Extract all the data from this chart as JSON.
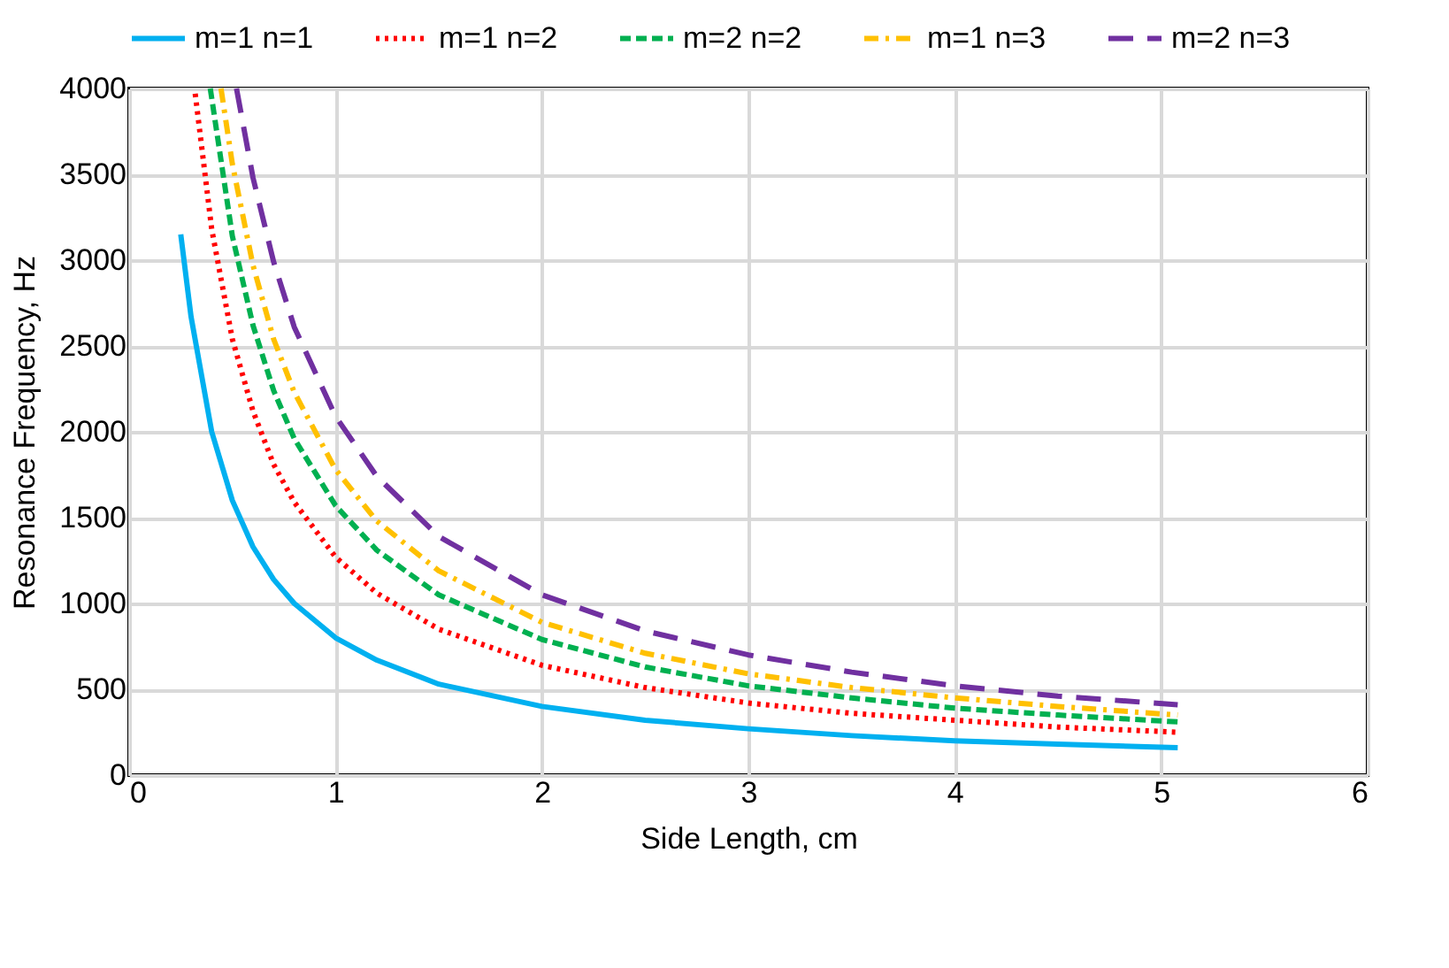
{
  "chart_data": {
    "type": "line",
    "xlabel": "Side Length, cm",
    "ylabel": "Resonance Frequency, Hz",
    "xlim": [
      0,
      6
    ],
    "xticks": [
      0,
      1,
      2,
      3,
      4,
      5,
      6
    ],
    "ylim": [
      0,
      4000
    ],
    "yticks": [
      0,
      500,
      1000,
      1500,
      2000,
      2500,
      3000,
      3500,
      4000
    ],
    "grid": true,
    "legend": "top",
    "marker": "none",
    "series": [
      {
        "name": "m=1 n=1",
        "color": "#00b0f0",
        "line_style": "solid",
        "x": [
          0.25,
          0.3,
          0.4,
          0.5,
          0.6,
          0.7,
          0.8,
          1,
          1.2,
          1.5,
          2,
          2.5,
          3,
          3.5,
          4,
          4.5,
          5.08
        ],
        "values": [
          3150,
          2670,
          2000,
          1600,
          1330,
          1140,
          1000,
          800,
          670,
          530,
          400,
          320,
          270,
          230,
          200,
          180,
          160
        ]
      },
      {
        "name": "m=1 n=2",
        "color": "#ff0000",
        "line_style": "dotted",
        "x": [
          0.32,
          0.4,
          0.5,
          0.6,
          0.7,
          0.8,
          1,
          1.2,
          1.5,
          2,
          2.5,
          3,
          3.5,
          4,
          4.5,
          5.08
        ],
        "values": [
          3970,
          3180,
          2540,
          2120,
          1810,
          1590,
          1270,
          1060,
          850,
          640,
          510,
          420,
          360,
          320,
          280,
          250
        ]
      },
      {
        "name": "m=2 n=2",
        "color": "#00b050",
        "line_style": "dashed",
        "x": [
          0.393,
          0.5,
          0.6,
          0.7,
          0.8,
          1,
          1.2,
          1.5,
          2,
          2.5,
          3,
          3.5,
          4,
          4.5,
          5.08
        ],
        "values": [
          4000,
          3140,
          2620,
          2240,
          1960,
          1570,
          1310,
          1050,
          790,
          630,
          520,
          450,
          390,
          350,
          310
        ]
      },
      {
        "name": "m=1 n=3",
        "color": "#ffc000",
        "line_style": "dashdot",
        "x": [
          0.445,
          0.5,
          0.6,
          0.7,
          0.8,
          1,
          1.2,
          1.5,
          2,
          2.5,
          3,
          3.5,
          4,
          4.5,
          5.08
        ],
        "values": [
          4000,
          3560,
          2970,
          2540,
          2230,
          1780,
          1480,
          1190,
          890,
          710,
          590,
          510,
          450,
          400,
          350
        ]
      },
      {
        "name": "m=2 n=3",
        "color": "#7030a0",
        "line_style": "longdash",
        "x": [
          0.52,
          0.6,
          0.7,
          0.8,
          1,
          1.2,
          1.5,
          2,
          2.5,
          3,
          3.5,
          4,
          4.5,
          5.08
        ],
        "values": [
          4000,
          3480,
          2990,
          2610,
          2090,
          1740,
          1390,
          1050,
          840,
          700,
          600,
          520,
          460,
          410
        ]
      }
    ]
  }
}
